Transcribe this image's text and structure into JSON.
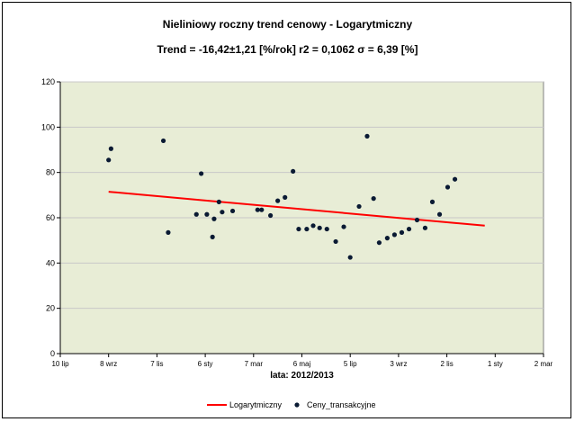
{
  "chart_data": {
    "type": "scatter",
    "title": "Nieliniowy roczny trend cenowy -  Logarytmiczny",
    "subtitle": "Trend = -16,42±1,21 [%/rok]     r2 = 0,1062     σ = 6,39 [%]",
    "xlabel": "lata:  2012/2013",
    "ylabel": "",
    "ylim": [
      0,
      120
    ],
    "yticks": [
      0,
      20,
      40,
      60,
      80,
      100,
      120
    ],
    "xlim": [
      "2012-07-10",
      "2014-03-02"
    ],
    "xticks": [
      {
        "date": "2012-07-10",
        "label": "10 lip"
      },
      {
        "date": "2012-09-08",
        "label": "8 wrz"
      },
      {
        "date": "2012-11-07",
        "label": "7 lis"
      },
      {
        "date": "2013-01-06",
        "label": "6 sty"
      },
      {
        "date": "2013-03-07",
        "label": "7 mar"
      },
      {
        "date": "2013-05-06",
        "label": "6 maj"
      },
      {
        "date": "2013-07-05",
        "label": "5 lip"
      },
      {
        "date": "2013-09-03",
        "label": "3 wrz"
      },
      {
        "date": "2013-11-02",
        "label": "2 lis"
      },
      {
        "date": "2014-01-01",
        "label": "1 sty"
      },
      {
        "date": "2014-03-02",
        "label": "2 mar"
      }
    ],
    "grid": {
      "horizontal": true,
      "vertical": false
    },
    "plot_background": "#e8edd6",
    "gridline_color": "#c8c8c8",
    "legend_placement": "bottom",
    "series": [
      {
        "name": "Logarytmiczny",
        "kind": "line",
        "color": "#ff0000",
        "points": [
          {
            "x": "2012-09-08",
            "y": 71.5
          },
          {
            "x": "2013-12-19",
            "y": 56.5
          }
        ]
      },
      {
        "name": "Ceny_transakcyjne",
        "kind": "scatter",
        "color": "#0a1a33",
        "points": [
          {
            "x": "2012-09-08",
            "y": 85.5
          },
          {
            "x": "2012-09-11",
            "y": 90.5
          },
          {
            "x": "2012-11-15",
            "y": 94
          },
          {
            "x": "2012-11-21",
            "y": 53.5
          },
          {
            "x": "2012-12-26",
            "y": 61.5
          },
          {
            "x": "2013-01-01",
            "y": 79.5
          },
          {
            "x": "2013-01-08",
            "y": 61.5
          },
          {
            "x": "2013-01-15",
            "y": 51.5
          },
          {
            "x": "2013-01-17",
            "y": 59.5
          },
          {
            "x": "2013-01-23",
            "y": 67
          },
          {
            "x": "2013-01-27",
            "y": 62.5
          },
          {
            "x": "2013-02-09",
            "y": 63
          },
          {
            "x": "2013-03-12",
            "y": 63.5
          },
          {
            "x": "2013-03-17",
            "y": 63.5
          },
          {
            "x": "2013-03-28",
            "y": 61
          },
          {
            "x": "2013-04-06",
            "y": 67.5
          },
          {
            "x": "2013-04-15",
            "y": 69
          },
          {
            "x": "2013-04-25",
            "y": 80.5
          },
          {
            "x": "2013-05-02",
            "y": 55
          },
          {
            "x": "2013-05-12",
            "y": 55
          },
          {
            "x": "2013-05-20",
            "y": 56.5
          },
          {
            "x": "2013-05-28",
            "y": 55.5
          },
          {
            "x": "2013-06-06",
            "y": 55
          },
          {
            "x": "2013-06-17",
            "y": 49.5
          },
          {
            "x": "2013-06-27",
            "y": 56
          },
          {
            "x": "2013-07-05",
            "y": 42.5
          },
          {
            "x": "2013-07-16",
            "y": 65
          },
          {
            "x": "2013-07-26",
            "y": 96
          },
          {
            "x": "2013-08-03",
            "y": 68.5
          },
          {
            "x": "2013-08-10",
            "y": 49
          },
          {
            "x": "2013-08-20",
            "y": 51
          },
          {
            "x": "2013-08-29",
            "y": 52.5
          },
          {
            "x": "2013-09-07",
            "y": 53.5
          },
          {
            "x": "2013-09-16",
            "y": 55
          },
          {
            "x": "2013-09-26",
            "y": 59
          },
          {
            "x": "2013-10-06",
            "y": 55.5
          },
          {
            "x": "2013-10-15",
            "y": 67
          },
          {
            "x": "2013-10-24",
            "y": 61.5
          },
          {
            "x": "2013-11-03",
            "y": 73.5
          },
          {
            "x": "2013-11-12",
            "y": 77
          }
        ]
      }
    ]
  }
}
